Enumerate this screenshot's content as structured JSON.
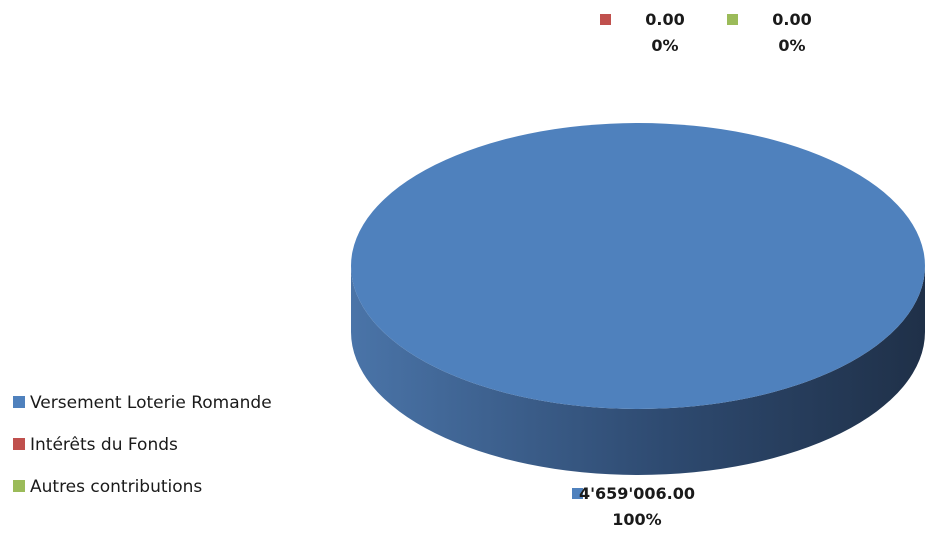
{
  "chart_data": {
    "type": "pie",
    "title": "",
    "slices": [
      {
        "name": "Versement Loterie Romande",
        "value": 4659006.0,
        "value_label": "4'659'006.00",
        "percent_label": "100%",
        "color": "#4F81BD"
      },
      {
        "name": "Intérêts du Fonds",
        "value": 0.0,
        "value_label": "0.00",
        "percent_label": "0%",
        "color": "#C0504D"
      },
      {
        "name": "Autres contributions",
        "value": 0.0,
        "value_label": "0.00",
        "percent_label": "0%",
        "color": "#9BBB59"
      }
    ],
    "style": "3d",
    "legend_position": "left",
    "colors": {
      "side_dark": "#1F3048",
      "side_light": "#4A74A8"
    }
  }
}
